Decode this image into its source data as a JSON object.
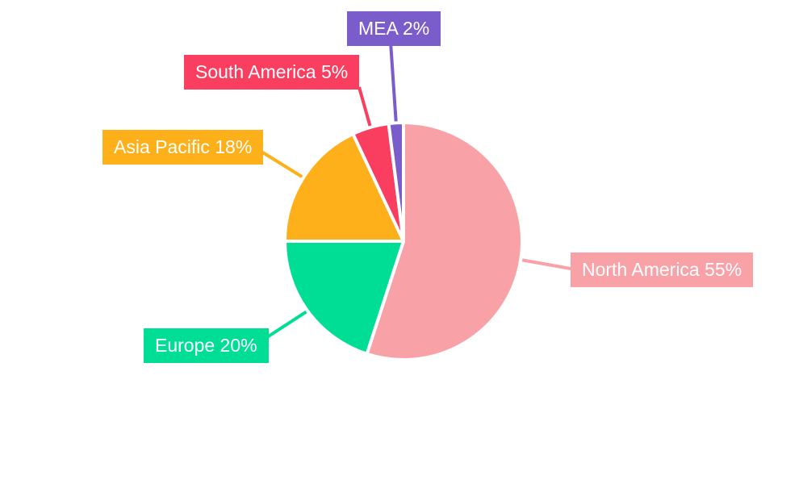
{
  "chart_data": {
    "type": "pie",
    "title": "",
    "unit": "%",
    "categories": [
      "North America",
      "Europe",
      "Asia Pacific",
      "South America",
      "MEA"
    ],
    "values": [
      55,
      20,
      18,
      5,
      2
    ],
    "labels": [
      "North America 55%",
      "Europe 20%",
      "Asia Pacific 18%",
      "South America 5%",
      "MEA 2%"
    ],
    "colors": [
      "#F8A2A8",
      "#00DE95",
      "#FDB019",
      "#F93E5F",
      "#7B5CCB"
    ],
    "label_text_color": "#FFFFFF",
    "slice_border_color": "#FFFFFF",
    "background": "#FFFFFF",
    "start_angle_deg": 0,
    "direction": "clockwise",
    "legend_position": "none"
  }
}
